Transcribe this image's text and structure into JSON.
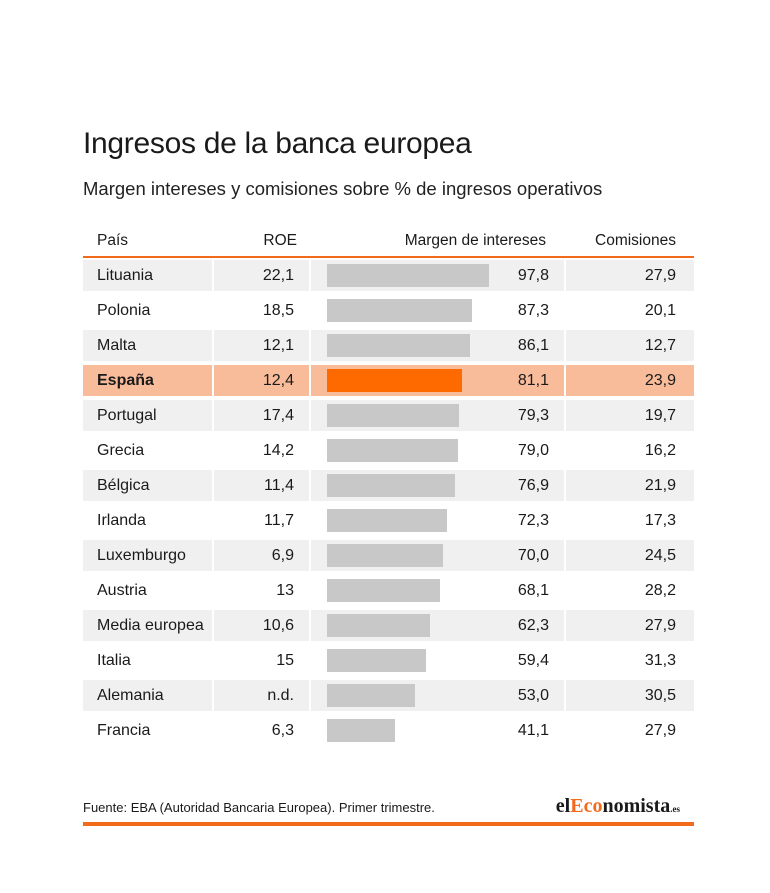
{
  "header": {
    "title": "Ingresos de la banca europea",
    "subtitle": "Margen intereses y comisiones sobre % de ingresos operativos"
  },
  "columns": {
    "pais": "País",
    "roe": "ROE",
    "margin": "Margen de intereses",
    "comisiones": "Comisiones"
  },
  "chart_data": {
    "type": "table",
    "highlight": "España",
    "bar_column": "Margen de intereses",
    "bar_max": 100,
    "rows": [
      {
        "pais": "Lituania",
        "roe": "22,1",
        "margin": 97.8,
        "margin_label": "97,8",
        "comisiones": "27,9"
      },
      {
        "pais": "Polonia",
        "roe": "18,5",
        "margin": 87.3,
        "margin_label": "87,3",
        "comisiones": "20,1"
      },
      {
        "pais": "Malta",
        "roe": "12,1",
        "margin": 86.1,
        "margin_label": "86,1",
        "comisiones": "12,7"
      },
      {
        "pais": "España",
        "roe": "12,4",
        "margin": 81.1,
        "margin_label": "81,1",
        "comisiones": "23,9"
      },
      {
        "pais": "Portugal",
        "roe": "17,4",
        "margin": 79.3,
        "margin_label": "79,3",
        "comisiones": "19,7"
      },
      {
        "pais": "Grecia",
        "roe": "14,2",
        "margin": 79.0,
        "margin_label": "79,0",
        "comisiones": "16,2"
      },
      {
        "pais": "Bélgica",
        "roe": "11,4",
        "margin": 76.9,
        "margin_label": "76,9",
        "comisiones": "21,9"
      },
      {
        "pais": "Irlanda",
        "roe": "11,7",
        "margin": 72.3,
        "margin_label": "72,3",
        "comisiones": "17,3"
      },
      {
        "pais": "Luxemburgo",
        "roe": "6,9",
        "margin": 70.0,
        "margin_label": "70,0",
        "comisiones": "24,5"
      },
      {
        "pais": "Austria",
        "roe": "13",
        "margin": 68.1,
        "margin_label": "68,1",
        "comisiones": "28,2"
      },
      {
        "pais": "Media europea",
        "roe": "10,6",
        "margin": 62.3,
        "margin_label": "62,3",
        "comisiones": "27,9"
      },
      {
        "pais": "Italia",
        "roe": "15",
        "margin": 59.4,
        "margin_label": "59,4",
        "comisiones": "31,3"
      },
      {
        "pais": "Alemania",
        "roe": "n.d.",
        "margin": 53.0,
        "margin_label": "53,0",
        "comisiones": "30,5"
      },
      {
        "pais": "Francia",
        "roe": "6,3",
        "margin": 41.1,
        "margin_label": "41,1",
        "comisiones": "27,9"
      }
    ]
  },
  "colors": {
    "accent": "#f26a1b",
    "highlight_row": "#f8bc9b",
    "highlight_bar": "#ff6a00",
    "bar": "#c8c8c8",
    "row_shade": "#f0f0f0"
  },
  "footer": {
    "source": "Fuente: EBA (Autoridad Bancaria Europea). Primer trimestre.",
    "logo_pre": "el",
    "logo_accent": "Eco",
    "logo_post": "nomista",
    "logo_domain": ".es"
  }
}
